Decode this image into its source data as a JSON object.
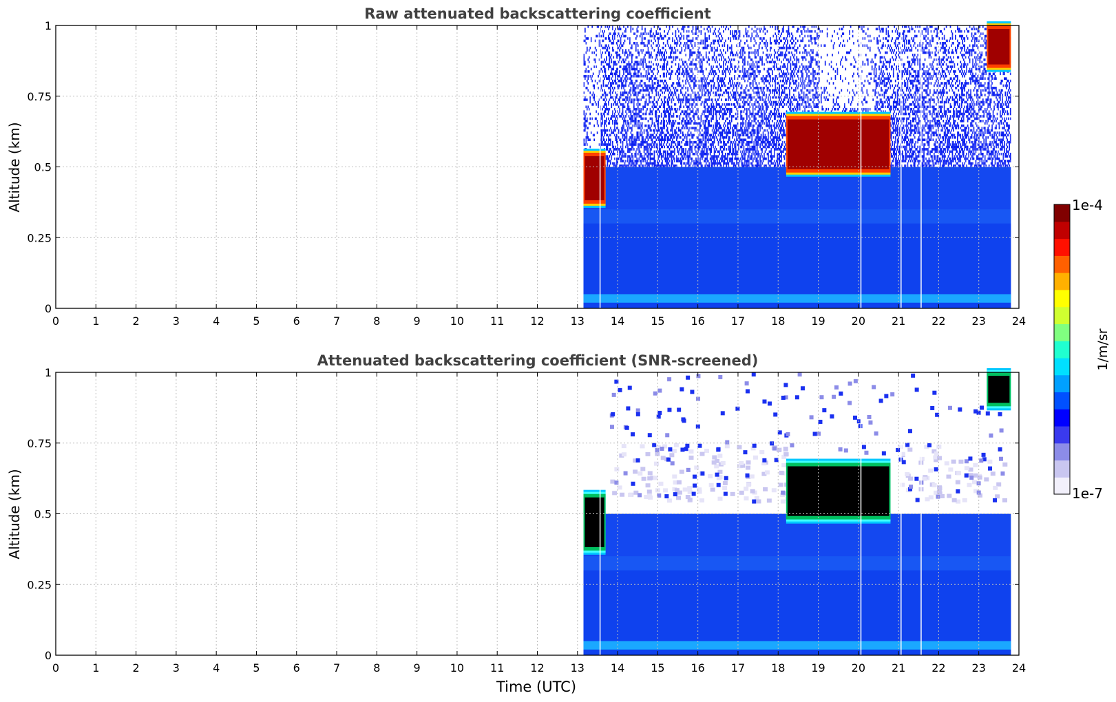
{
  "chart_data": [
    {
      "type": "heatmap",
      "title": "Raw attenuated backscattering coefficient",
      "xlabel": "",
      "ylabel": "Altitude (km)",
      "xlim": [
        0,
        24
      ],
      "ylim": [
        0,
        1
      ],
      "x_ticks": [
        "0",
        "1",
        "2",
        "3",
        "4",
        "5",
        "6",
        "7",
        "8",
        "9",
        "10",
        "11",
        "12",
        "13",
        "14",
        "15",
        "16",
        "17",
        "18",
        "19",
        "20",
        "21",
        "22",
        "23",
        "24"
      ],
      "y_ticks": [
        "0",
        "0.25",
        "0.5",
        "0.75",
        "1"
      ],
      "grid": true,
      "data_range_x": [
        13.15,
        23.8
      ],
      "cloud_layers": [
        {
          "x": [
            13.15,
            13.7
          ],
          "base": 0.37,
          "top": 0.55,
          "intensity": "high"
        },
        {
          "x": [
            18.2,
            20.8
          ],
          "base": 0.48,
          "top": 0.68,
          "intensity": "high"
        },
        {
          "x": [
            23.2,
            23.8
          ],
          "base": 0.85,
          "top": 1.0,
          "intensity": "high"
        }
      ],
      "boundary_layer_top": 0.5,
      "noise_region": "above 0.5 km"
    },
    {
      "type": "heatmap",
      "title": "Attenuated backscattering coefficient (SNR-screened)",
      "xlabel": "Time (UTC)",
      "ylabel": "Altitude (km)",
      "xlim": [
        0,
        24
      ],
      "ylim": [
        0,
        1
      ],
      "x_ticks": [
        "0",
        "1",
        "2",
        "3",
        "4",
        "5",
        "6",
        "7",
        "8",
        "9",
        "10",
        "11",
        "12",
        "13",
        "14",
        "15",
        "16",
        "17",
        "18",
        "19",
        "20",
        "21",
        "22",
        "23",
        "24"
      ],
      "y_ticks": [
        "0",
        "0.25",
        "0.5",
        "0.75",
        "1"
      ],
      "grid": true,
      "data_range_x": [
        13.15,
        23.8
      ],
      "cloud_layers": [
        {
          "x": [
            13.15,
            13.7
          ],
          "base": 0.37,
          "top": 0.57,
          "intensity": "saturated"
        },
        {
          "x": [
            18.2,
            20.8
          ],
          "base": 0.48,
          "top": 0.68,
          "intensity": "saturated"
        },
        {
          "x": [
            23.2,
            23.8
          ],
          "base": 0.88,
          "top": 1.0,
          "intensity": "saturated"
        }
      ],
      "screened_noise": "sparse pixels above 0.6 km"
    }
  ],
  "colorbar": {
    "min_label": "1e-7",
    "max_label": "1e-4",
    "unit": "1/m/sr",
    "colors": [
      "#f2f0fb",
      "#c9c6f0",
      "#8c8ce8",
      "#3a3aee",
      "#0000ff",
      "#0050ff",
      "#00a0ff",
      "#00e0ff",
      "#20ffd0",
      "#80ff80",
      "#d0ff30",
      "#ffff00",
      "#ffb000",
      "#ff6000",
      "#ff1000",
      "#c00000",
      "#800000"
    ]
  }
}
